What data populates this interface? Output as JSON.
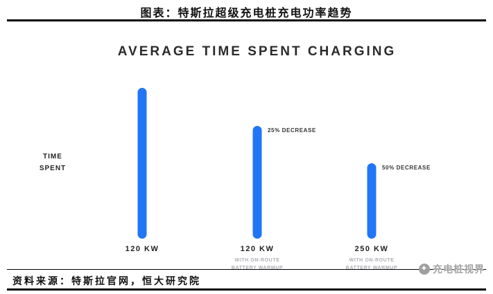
{
  "header": {
    "title": "图表：特斯拉超级充电桩充电功率趋势"
  },
  "chart_data": {
    "type": "bar",
    "title": "AVERAGE TIME SPENT CHARGING",
    "xlabel": "",
    "ylabel": "TIME SPENT",
    "categories": [
      "120 KW",
      "120 KW",
      "250 KW"
    ],
    "category_sublabels": [
      "",
      "WITH ON-ROUTE BATTERY WARMUP",
      "WITH ON-ROUTE BATTERY WARMUP"
    ],
    "values": [
      100,
      75,
      50
    ],
    "value_note": "relative average charging time, first bar indexed to 100",
    "annotations": [
      "",
      "25% DECREASE",
      "50% DECREASE"
    ],
    "ylim": [
      0,
      100
    ],
    "grid": false,
    "legend": false,
    "bar_color": "#2176f5"
  },
  "footer": {
    "source": "资料来源：特斯拉官网，恒大研究院"
  },
  "watermark": {
    "text": "充电桩视界",
    "icon": "✦"
  }
}
